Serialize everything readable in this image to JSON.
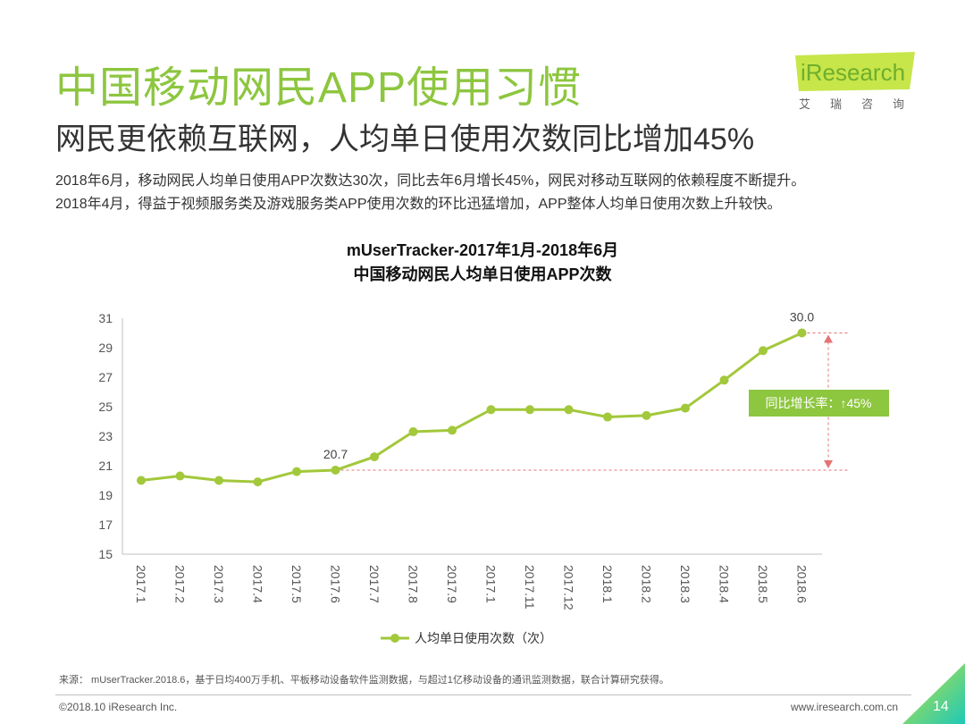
{
  "header": {
    "title": "中国移动网民APP使用习惯",
    "subtitle": "网民更依赖互联网，人均单日使用次数同比增加45%",
    "desc_line1": "2018年6月，移动网民人均单日使用APP次数达30次，同比去年6月增长45%，网民对移动互联网的依赖程度不断提升。",
    "desc_line2": "2018年4月，得益于视频服务类及游戏服务类APP使用次数的环比迅猛增加，APP整体人均单日使用次数上升较快。"
  },
  "logo": {
    "text": "iResearch",
    "cn": "艾瑞咨询"
  },
  "chart_data": {
    "type": "line",
    "title": "mUserTracker-2017年1月-2018年6月",
    "subtitle": "中国移动网民人均单日使用APP次数",
    "categories": [
      "2017.1",
      "2017.2",
      "2017.3",
      "2017.4",
      "2017.5",
      "2017.6",
      "2017.7",
      "2017.8",
      "2017.9",
      "2017.1",
      "2017.11",
      "2017.12",
      "2018.1",
      "2018.2",
      "2018.3",
      "2018.4",
      "2018.5",
      "2018.6"
    ],
    "series": [
      {
        "name": "人均单日使用次数（次）",
        "values": [
          20.0,
          20.3,
          20.0,
          19.9,
          20.6,
          20.7,
          21.6,
          23.3,
          23.4,
          24.8,
          24.8,
          24.8,
          24.3,
          24.4,
          24.9,
          26.8,
          28.8,
          30.0
        ],
        "color": "#a2c83b"
      }
    ],
    "ylim": [
      15,
      31
    ],
    "yticks": [
      15,
      17,
      19,
      21,
      23,
      25,
      27,
      29,
      31
    ],
    "data_labels": [
      {
        "index": 5,
        "text": "20.7"
      },
      {
        "index": 17,
        "text": "30.0"
      }
    ],
    "annotation": "同比增长率：↑45%",
    "annotation_color": "#8dc63f",
    "reference_color": "#e57373",
    "grid": false,
    "legend": "bottom-center"
  },
  "footer": {
    "source": "来源： mUserTracker.2018.6，基于日均400万手机、平板移动设备软件监测数据，与超过1亿移动设备的通讯监测数据，联合计算研究获得。",
    "copyright": "©2018.10 iResearch Inc.",
    "website": "www.iresearch.com.cn",
    "page": "14"
  },
  "colors": {
    "brand_green": "#8dc63f",
    "logo_green": "#c7e64a",
    "corner_start": "#c6e33b",
    "corner_end": "#1ec9b7"
  }
}
